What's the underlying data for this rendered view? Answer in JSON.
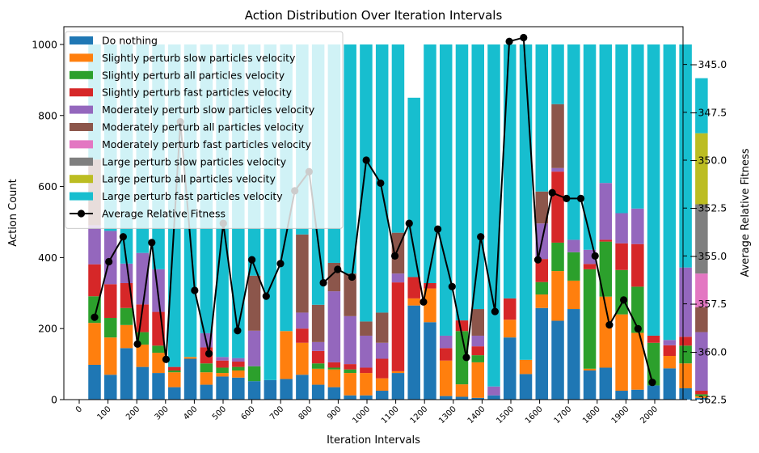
{
  "chart_data": {
    "type": "bar",
    "stacked": true,
    "title": "Action Distribution Over Iteration Intervals",
    "xlabel": "Iteration Intervals",
    "ylabel": "Action Count",
    "y2label": "Average Relative Fitness",
    "ylim": [
      0,
      1050
    ],
    "y2lim": [
      -362.5,
      -343.2
    ],
    "yticks": [
      0,
      200,
      400,
      600,
      800,
      1000
    ],
    "y2ticks": [
      -362.5,
      -360.0,
      -357.5,
      -355.0,
      -352.5,
      -350.0,
      -347.5,
      -345.0
    ],
    "y2tick_labels": [
      "−362.5",
      "−360.0",
      "−357.5",
      "−355.0",
      "−352.5",
      "−350.0",
      "−347.5",
      "−345.0"
    ],
    "xtick_labels": [
      "0",
      "100",
      "200",
      "300",
      "400",
      "500",
      "600",
      "700",
      "800",
      "900",
      "1000",
      "1100",
      "1200",
      "1300",
      "1400",
      "1500",
      "1600",
      "1700",
      "1800",
      "1900",
      "2000"
    ],
    "legend_position": "upper-left",
    "grid": false,
    "colors": [
      "#1f77b4",
      "#ff7f0e",
      "#2ca02c",
      "#d62728",
      "#9467bd",
      "#8c564b",
      "#e377c2",
      "#7f7f7f",
      "#bcbd22",
      "#17becf"
    ],
    "line_color": "#000000",
    "series": [
      {
        "name": "Do nothing",
        "values": [
          98,
          70,
          145,
          92,
          75,
          35,
          115,
          42,
          65,
          62,
          52,
          55,
          58,
          70,
          42,
          35,
          12,
          12,
          25,
          75,
          265,
          218,
          10,
          8,
          5,
          12,
          175,
          72,
          258,
          222,
          255,
          82,
          90,
          25,
          28,
          40,
          88,
          32,
          5
        ]
      },
      {
        "name": "Slightly perturb slow particles velocity",
        "values": [
          118,
          105,
          65,
          63,
          57,
          42,
          5,
          35,
          10,
          20,
          0,
          0,
          135,
          90,
          45,
          50,
          63,
          63,
          35,
          5,
          20,
          95,
          100,
          35,
          100,
          0,
          50,
          40,
          38,
          140,
          80,
          5,
          200,
          215,
          160,
          0,
          35,
          70,
          5
        ]
      },
      {
        "name": "Slightly perturb all particles velocity",
        "values": [
          75,
          55,
          48,
          35,
          20,
          5,
          0,
          25,
          15,
          10,
          42,
          0,
          0,
          0,
          15,
          5,
          10,
          0,
          0,
          0,
          0,
          0,
          0,
          150,
          20,
          0,
          0,
          0,
          35,
          80,
          80,
          280,
          155,
          125,
          130,
          120,
          0,
          50,
          5
        ]
      },
      {
        "name": "Slightly perturb fast particles velocity",
        "values": [
          90,
          95,
          70,
          78,
          95,
          10,
          0,
          45,
          20,
          15,
          0,
          0,
          0,
          40,
          35,
          15,
          15,
          15,
          55,
          250,
          60,
          15,
          35,
          30,
          25,
          0,
          60,
          0,
          65,
          200,
          0,
          15,
          5,
          75,
          120,
          20,
          30,
          25,
          10
        ]
      },
      {
        "name": "Moderately perturb slow particles velocity",
        "values": [
          110,
          150,
          55,
          145,
          120,
          0,
          0,
          40,
          10,
          10,
          100,
          0,
          0,
          45,
          25,
          200,
          135,
          90,
          45,
          25,
          0,
          0,
          35,
          0,
          30,
          25,
          0,
          0,
          100,
          10,
          35,
          40,
          160,
          85,
          100,
          0,
          15,
          195,
          165
        ]
      },
      {
        "name": "Moderately perturb all particles velocity",
        "values": [
          185,
          0,
          0,
          0,
          0,
          0,
          0,
          0,
          0,
          0,
          155,
          0,
          0,
          220,
          105,
          80,
          120,
          40,
          85,
          115,
          0,
          0,
          0,
          0,
          75,
          0,
          0,
          0,
          90,
          180,
          0,
          0,
          0,
          0,
          0,
          0,
          0,
          0,
          70
        ]
      },
      {
        "name": "Moderately perturb fast particles velocity",
        "values": [
          0,
          0,
          0,
          0,
          0,
          0,
          0,
          0,
          0,
          0,
          0,
          0,
          0,
          0,
          0,
          0,
          0,
          0,
          0,
          0,
          0,
          0,
          0,
          0,
          0,
          0,
          0,
          0,
          0,
          0,
          0,
          0,
          0,
          0,
          0,
          0,
          0,
          0,
          95
        ]
      },
      {
        "name": "Large perturb slow particles velocity",
        "values": [
          0,
          0,
          0,
          0,
          0,
          0,
          0,
          0,
          0,
          0,
          0,
          0,
          0,
          0,
          0,
          0,
          0,
          0,
          0,
          0,
          0,
          0,
          0,
          0,
          0,
          0,
          0,
          0,
          0,
          0,
          0,
          0,
          0,
          0,
          0,
          0,
          0,
          0,
          195
        ]
      },
      {
        "name": "Large perturb all particles velocity",
        "values": [
          0,
          0,
          0,
          0,
          0,
          0,
          0,
          0,
          0,
          0,
          0,
          0,
          0,
          0,
          0,
          0,
          0,
          0,
          0,
          0,
          0,
          0,
          0,
          0,
          0,
          0,
          0,
          0,
          0,
          0,
          0,
          0,
          0,
          0,
          0,
          0,
          0,
          0,
          200
        ]
      },
      {
        "name": "Large perturb fast particles velocity",
        "values": [
          324,
          525,
          617,
          587,
          633,
          908,
          880,
          813,
          880,
          883,
          651,
          945,
          807,
          535,
          733,
          615,
          645,
          780,
          755,
          530,
          505,
          672,
          820,
          777,
          745,
          963,
          715,
          888,
          414,
          168,
          550,
          578,
          390,
          475,
          462,
          820,
          832,
          628,
          155
        ]
      }
    ],
    "line": {
      "name": "Average Relative Fitness",
      "values": [
        -358.2,
        -355.3,
        -354.0,
        -359.6,
        -354.3,
        -360.4,
        -348.0,
        -356.8,
        -360.1,
        -353.3,
        -358.9,
        -355.2,
        -357.1,
        -355.4,
        -351.6,
        -350.6,
        -356.4,
        -355.7,
        -356.1,
        -350.0,
        -351.2,
        -355.0,
        -353.3,
        -357.4,
        -353.6,
        -356.6,
        -360.3,
        -354.0,
        -357.9,
        -343.8,
        -343.6,
        -355.2,
        -351.7,
        -352.0,
        -352.0,
        -355.0,
        -358.6,
        -357.3,
        -358.8,
        -361.6
      ]
    }
  }
}
